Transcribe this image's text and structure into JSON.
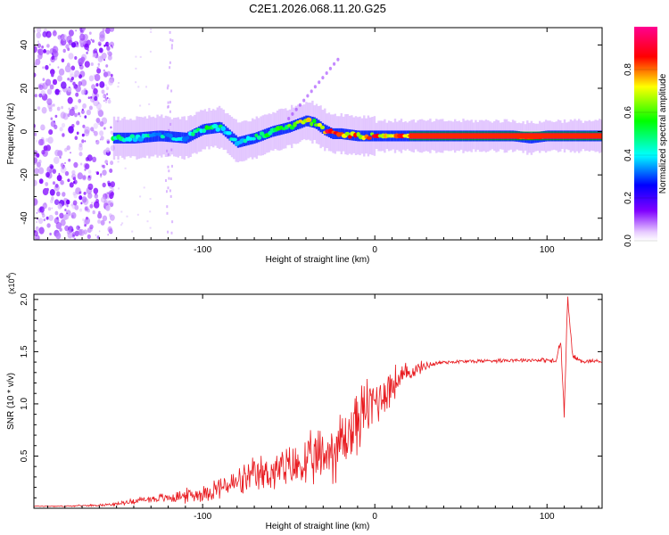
{
  "title": "C2E1.2026.068.11.20.G25",
  "chart_data": [
    {
      "type": "heatmap",
      "title": "C2E1.2026.068.11.20.G25",
      "xlabel": "Height of straight line (km)",
      "ylabel": "Frequency (Hz)",
      "xlim": [
        -198,
        132
      ],
      "ylim": [
        -50,
        48
      ],
      "xticks": [
        -100,
        0,
        100
      ],
      "xtick_labels": [
        "-100",
        "0",
        "100"
      ],
      "yticks": [
        -40,
        -20,
        0,
        20,
        40
      ],
      "ytick_labels": [
        "-40",
        "-20",
        "0",
        "20",
        "40"
      ],
      "colorbar": {
        "label": "Normalized spectral amplitude",
        "range": [
          0.0,
          1.0
        ],
        "ticks": [
          0.0,
          0.2,
          0.4,
          0.6,
          0.8
        ],
        "tick_labels": [
          "0.0",
          "0.2",
          "0.4",
          "0.6",
          "0.8"
        ],
        "colors": [
          "#ffffff",
          "#8000ff",
          "#0000ff",
          "#00ffff",
          "#00ff00",
          "#ffff00",
          "#ff0000",
          "#ff0090"
        ]
      },
      "noise_region_x": [
        -198,
        -152
      ],
      "ridge": {
        "x": [
          -152,
          -140,
          -125,
          -110,
          -100,
          -90,
          -80,
          -70,
          -60,
          -50,
          -40,
          -35,
          -30,
          -25,
          -20,
          -10,
          0,
          20,
          40,
          60,
          80,
          90,
          100,
          110,
          120,
          132
        ],
        "freq": [
          -3,
          -3,
          -2,
          -3,
          1,
          2,
          -5,
          -3,
          0,
          2,
          5,
          4,
          1,
          -1,
          -1,
          -2,
          -2,
          -2,
          -2,
          -2,
          -2,
          -3,
          -2,
          -2,
          -2,
          -2
        ],
        "amplitude": [
          0.5,
          0.5,
          0.45,
          0.4,
          0.55,
          0.5,
          0.45,
          0.55,
          0.6,
          0.6,
          0.75,
          0.7,
          0.85,
          0.9,
          0.9,
          0.8,
          0.85,
          0.9,
          0.95,
          0.95,
          0.95,
          0.9,
          0.9,
          0.95,
          0.95,
          0.95
        ]
      }
    },
    {
      "type": "line",
      "xlabel": "Height of straight line (km)",
      "ylabel": "SNR (10 * v/v)",
      "y_multiplier": "(x10",
      "y_multiplier_exp": "4",
      "y_multiplier_close": ")",
      "xlim": [
        -198,
        132
      ],
      "ylim": [
        0,
        2.05
      ],
      "xticks": [
        -100,
        0,
        100
      ],
      "xtick_labels": [
        "-100",
        "0",
        "100"
      ],
      "yticks": [
        0.5,
        1.0,
        1.5,
        2.0
      ],
      "ytick_labels": [
        "0.5",
        "1.0",
        "1.5",
        "2.0"
      ],
      "color": "#e8191e",
      "series": [
        {
          "name": "SNR",
          "x": [
            -198,
            -180,
            -160,
            -150,
            -140,
            -130,
            -120,
            -110,
            -100,
            -90,
            -80,
            -70,
            -60,
            -50,
            -40,
            -30,
            -20,
            -15,
            -10,
            -5,
            0,
            10,
            20,
            30,
            40,
            60,
            80,
            100,
            105,
            108,
            110,
            112,
            115,
            120,
            132
          ],
          "y": [
            0.02,
            0.02,
            0.03,
            0.04,
            0.07,
            0.09,
            0.1,
            0.12,
            0.14,
            0.2,
            0.24,
            0.3,
            0.35,
            0.38,
            0.42,
            0.5,
            0.62,
            0.7,
            0.85,
            0.95,
            1.02,
            1.18,
            1.3,
            1.37,
            1.4,
            1.41,
            1.42,
            1.42,
            1.4,
            1.6,
            0.9,
            2.0,
            1.45,
            1.41,
            1.41
          ],
          "noise_amplitude": [
            0.005,
            0.005,
            0.01,
            0.015,
            0.03,
            0.04,
            0.05,
            0.07,
            0.08,
            0.12,
            0.14,
            0.18,
            0.2,
            0.22,
            0.25,
            0.3,
            0.35,
            0.35,
            0.32,
            0.3,
            0.28,
            0.2,
            0.1,
            0.04,
            0.02,
            0.02,
            0.02,
            0.02,
            0.03,
            0.05,
            0.05,
            0.05,
            0.03,
            0.02,
            0.02
          ]
        }
      ]
    }
  ]
}
